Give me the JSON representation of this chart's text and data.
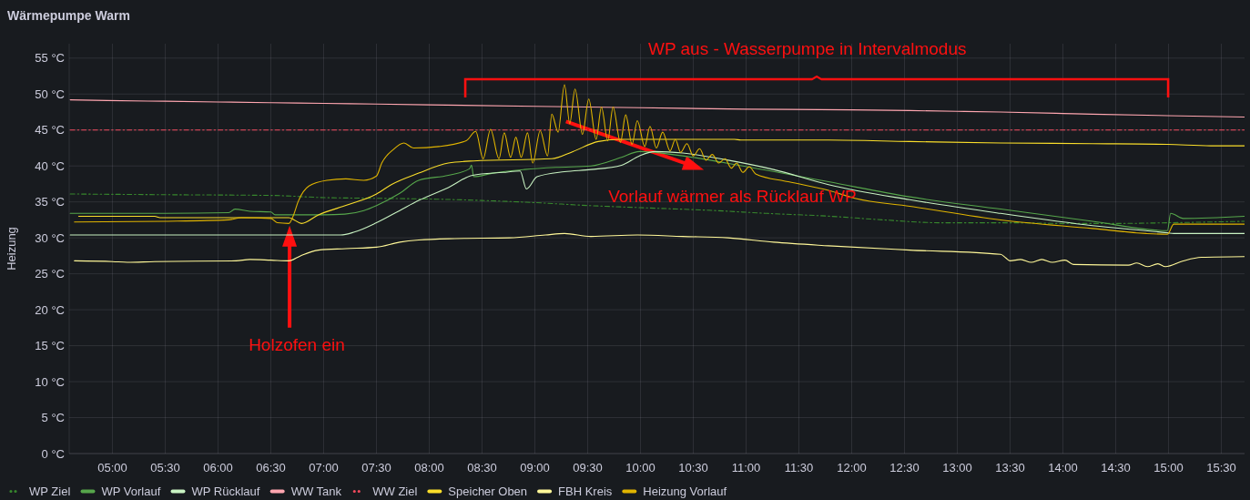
{
  "chart_data": {
    "type": "line",
    "title": "Wärmepumpe Warm",
    "ylabel": "Heizung",
    "xlim": [
      4.59,
      15.72
    ],
    "xticks": [
      {
        "value": 5,
        "label": "05:00"
      },
      {
        "value": 5.5,
        "label": "05:30"
      },
      {
        "value": 6,
        "label": "06:00"
      },
      {
        "value": 6.5,
        "label": "06:30"
      },
      {
        "value": 7,
        "label": "07:00"
      },
      {
        "value": 7.5,
        "label": "07:30"
      },
      {
        "value": 8,
        "label": "08:00"
      },
      {
        "value": 8.5,
        "label": "08:30"
      },
      {
        "value": 9,
        "label": "09:00"
      },
      {
        "value": 9.5,
        "label": "09:30"
      },
      {
        "value": 10,
        "label": "10:00"
      },
      {
        "value": 10.5,
        "label": "10:30"
      },
      {
        "value": 11,
        "label": "11:00"
      },
      {
        "value": 11.5,
        "label": "11:30"
      },
      {
        "value": 12,
        "label": "12:00"
      },
      {
        "value": 12.5,
        "label": "12:30"
      },
      {
        "value": 13,
        "label": "13:00"
      },
      {
        "value": 13.5,
        "label": "13:30"
      },
      {
        "value": 14,
        "label": "14:00"
      },
      {
        "value": 14.5,
        "label": "14:30"
      },
      {
        "value": 15,
        "label": "15:00"
      },
      {
        "value": 15.5,
        "label": "15:30"
      }
    ],
    "ylim": [
      0,
      57
    ],
    "yticks": [
      {
        "value": 0,
        "label": "0 °C"
      },
      {
        "value": 5,
        "label": "5 °C"
      },
      {
        "value": 10,
        "label": "10 °C"
      },
      {
        "value": 15,
        "label": "15 °C"
      },
      {
        "value": 20,
        "label": "20 °C"
      },
      {
        "value": 25,
        "label": "25 °C"
      },
      {
        "value": 30,
        "label": "30 °C"
      },
      {
        "value": 35,
        "label": "35 °C"
      },
      {
        "value": 40,
        "label": "40 °C"
      },
      {
        "value": 45,
        "label": "45 °C"
      },
      {
        "value": 50,
        "label": "50 °C"
      },
      {
        "value": 55,
        "label": "55 °C"
      }
    ],
    "grid": true,
    "legend": "bottom",
    "annotations": [
      "WP aus - Wasserpumpe in Intervalmodus",
      "Holzofen ein",
      "Vorlauf wärmer als Rücklauf WP"
    ],
    "series": [
      {
        "name": "WP Ziel",
        "color": "#37872d",
        "line_style": "dotted",
        "x": [
          4.6,
          5.5,
          6.5,
          7.0,
          7.5,
          8.0,
          8.5,
          9.0,
          9.5,
          10.0,
          10.7,
          11.2,
          11.8,
          12.3,
          12.84,
          13.5,
          14.0,
          14.5,
          15.0,
          15.72
        ],
        "values": [
          36.1,
          36.0,
          35.9,
          35.6,
          35.5,
          35.4,
          35.2,
          34.9,
          34.5,
          34.2,
          33.8,
          33.4,
          33.0,
          32.5,
          32.1,
          32.1,
          32.0,
          32.0,
          32.1,
          32.3
        ]
      },
      {
        "name": "WP Vorlauf",
        "color": "#56a64b",
        "x": [
          4.6,
          5.5,
          6.1,
          6.16,
          6.3,
          6.5,
          6.54,
          7.0,
          7.2,
          7.38,
          7.5,
          7.72,
          7.9,
          8.18,
          8.38,
          8.4,
          8.42,
          8.6,
          8.9,
          9.2,
          9.53,
          9.82,
          9.99,
          10.4,
          10.97,
          11.78,
          12.55,
          13.41,
          14.28,
          14.99,
          15.02,
          15.14,
          15.72
        ],
        "values": [
          33.4,
          33.4,
          33.5,
          34.0,
          33.7,
          33.6,
          33.2,
          33.2,
          33.3,
          33.8,
          34.5,
          36.2,
          38.0,
          38.7,
          39.6,
          40.1,
          38.5,
          39.0,
          39.5,
          39.8,
          40.0,
          41.2,
          42.0,
          41.4,
          40.0,
          37.8,
          35.7,
          34.0,
          32.3,
          31.0,
          33.4,
          32.7,
          33.0
        ]
      },
      {
        "name": "WP Rücklauf",
        "color": "#c8f2c2",
        "x": [
          4.6,
          5.5,
          6.5,
          7.16,
          7.29,
          7.5,
          7.72,
          7.9,
          8.18,
          8.41,
          8.7,
          8.86,
          8.92,
          9.02,
          9.28,
          9.53,
          9.82,
          9.99,
          10.14,
          10.4,
          10.83,
          11.26,
          11.78,
          12.55,
          13.41,
          14.28,
          14.99,
          15.05,
          15.72
        ],
        "values": [
          30.4,
          30.4,
          30.4,
          30.4,
          30.8,
          32.1,
          33.8,
          35.2,
          37.0,
          38.7,
          39.1,
          39.3,
          36.8,
          38.5,
          39.2,
          39.5,
          40.1,
          41.4,
          42.0,
          41.8,
          40.8,
          39.5,
          37.4,
          35.3,
          33.4,
          31.7,
          30.7,
          30.6,
          30.6
        ]
      },
      {
        "name": "WW Tank",
        "color": "#ffa6b0",
        "x": [
          4.6,
          4.95,
          5.5,
          6.0,
          6.5,
          7.0,
          7.5,
          8.0,
          9.0,
          10.0,
          11.0,
          12.0,
          12.55,
          13.0,
          13.41,
          14.0,
          14.28,
          14.99,
          15.72
        ],
        "values": [
          49.2,
          49.1,
          49.0,
          48.9,
          48.8,
          48.7,
          48.6,
          48.5,
          48.3,
          48.1,
          47.9,
          47.8,
          47.7,
          47.6,
          47.5,
          47.3,
          47.2,
          47.0,
          46.8
        ]
      },
      {
        "name": "WW Ziel",
        "color": "#f2495c",
        "line_style": "dotted",
        "x": [
          4.6,
          10.0,
          15.72
        ],
        "values": [
          45,
          45,
          45
        ]
      },
      {
        "name": "Speicher Oben",
        "color": "#fade2a",
        "x": [
          4.68,
          5.4,
          5.45,
          6.67,
          6.72,
          6.79,
          6.95,
          7.23,
          7.5,
          7.64,
          7.9,
          8.18,
          8.42,
          9.16,
          9.36,
          9.6,
          9.82,
          10.89,
          10.95,
          11.78,
          12.55,
          13.41,
          14.28,
          14.99,
          15.4,
          15.72
        ],
        "values": [
          33.0,
          33.0,
          32.8,
          32.8,
          32.5,
          32.0,
          33.2,
          34.6,
          36.1,
          37.4,
          39.0,
          40.4,
          40.7,
          41.0,
          42.0,
          43.4,
          43.7,
          43.7,
          43.6,
          43.6,
          43.4,
          43.2,
          43.1,
          43.0,
          42.8,
          42.8
        ]
      },
      {
        "name": "FBH Kreis",
        "color": "#fff899",
        "x": [
          4.64,
          5.0,
          5.14,
          5.4,
          6.17,
          6.3,
          6.5,
          6.67,
          6.78,
          6.95,
          7.21,
          7.5,
          7.72,
          7.9,
          8.24,
          8.76,
          9.1,
          9.28,
          9.53,
          9.97,
          10.4,
          10.83,
          11.26,
          11.78,
          12.55,
          13.41,
          13.46,
          13.5,
          13.6,
          13.7,
          13.8,
          13.9,
          14.02,
          14.1,
          14.62,
          14.7,
          14.8,
          14.9,
          14.97,
          15.14,
          15.31,
          15.72
        ],
        "values": [
          26.8,
          26.7,
          26.6,
          26.7,
          26.8,
          27.0,
          26.9,
          26.8,
          27.5,
          28.3,
          28.5,
          28.7,
          29.4,
          29.7,
          29.9,
          30.0,
          30.4,
          30.6,
          30.2,
          30.4,
          30.2,
          30.0,
          29.4,
          28.9,
          28.3,
          27.7,
          27.2,
          26.8,
          27.0,
          26.6,
          27.0,
          26.6,
          26.9,
          26.3,
          26.2,
          26.5,
          26.0,
          26.4,
          26.0,
          26.8,
          27.3,
          27.4
        ]
      },
      {
        "name": "Heizung Vorlauf",
        "color": "#e0b400",
        "x": [
          4.64,
          5.5,
          6.1,
          6.22,
          6.5,
          6.56,
          6.67,
          6.71,
          6.76,
          6.86,
          7.03,
          7.21,
          7.38,
          7.5,
          7.55,
          7.66,
          7.76,
          7.85,
          8.09,
          8.35,
          8.44,
          8.51,
          8.58,
          8.66,
          8.71,
          8.77,
          8.82,
          8.87,
          8.93,
          8.98,
          9.05,
          9.12,
          9.16,
          9.22,
          9.28,
          9.33,
          9.38,
          9.45,
          9.51,
          9.58,
          9.63,
          9.69,
          9.74,
          9.81,
          9.86,
          9.92,
          9.97,
          10.04,
          10.09,
          10.15,
          10.21,
          10.28,
          10.33,
          10.38,
          10.44,
          10.5,
          10.56,
          10.62,
          10.68,
          10.74,
          10.8,
          10.86,
          10.91,
          10.97,
          11.03,
          11.09,
          11.4,
          11.78,
          12.03,
          12.55,
          13.41,
          14.28,
          14.79,
          14.99,
          15.05,
          15.72
        ],
        "values": [
          32.2,
          32.3,
          32.5,
          32.8,
          32.7,
          32.1,
          32.0,
          33.0,
          35.1,
          37.2,
          38.0,
          38.2,
          38.0,
          38.6,
          40.4,
          42.3,
          43.2,
          42.5,
          42.7,
          43.5,
          44.8,
          41.0,
          45.1,
          41.0,
          44.6,
          41.2,
          44.0,
          41.2,
          44.6,
          40.4,
          44.9,
          41.4,
          47.2,
          44.7,
          51.3,
          45.9,
          50.7,
          44.4,
          49.3,
          43.7,
          48.2,
          43.5,
          48.2,
          43.3,
          47.1,
          43.0,
          46.3,
          42.7,
          45.5,
          42.5,
          44.7,
          42.1,
          43.7,
          41.9,
          43.1,
          41.4,
          42.4,
          40.8,
          41.6,
          40.4,
          41.0,
          39.7,
          40.4,
          39.1,
          39.9,
          38.9,
          37.8,
          36.6,
          35.5,
          34.4,
          32.5,
          31.3,
          30.6,
          30.5,
          31.9,
          31.9
        ]
      }
    ]
  }
}
